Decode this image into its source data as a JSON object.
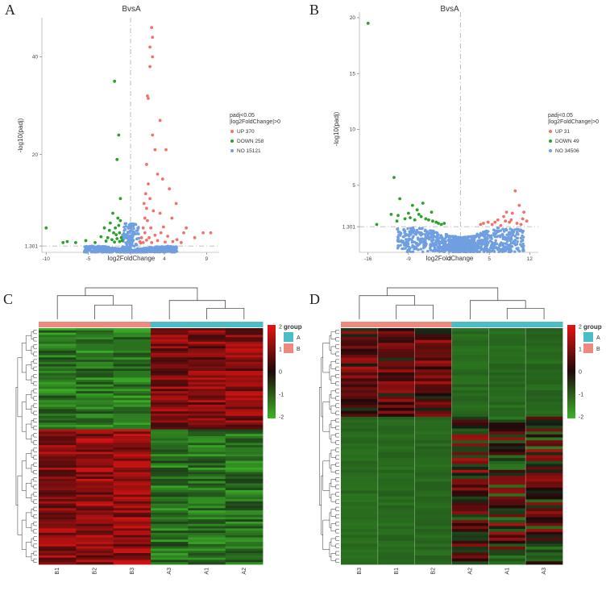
{
  "panels": {
    "A": "A",
    "B": "B",
    "C": "C",
    "D": "D"
  },
  "chart_data": [
    {
      "id": "A",
      "type": "scatter",
      "title": "BvsA",
      "xlabel": "log2FoldChange",
      "ylabel": "-log10(padj)",
      "xlim": [
        -10.5,
        10.5
      ],
      "ylim": [
        0,
        48
      ],
      "xticks": [
        -10,
        -5,
        0,
        4,
        9
      ],
      "yticks": [
        1.301,
        20,
        40
      ],
      "ytick_labels": [
        "1.301",
        "20",
        "40"
      ],
      "threshold": 1.301,
      "legend": {
        "title_line1": "padj<0.05",
        "title_line2": "|log2FoldChange|>0",
        "entries": [
          {
            "label": "UP 370",
            "color": "#f0736b"
          },
          {
            "label": "DOWN 258",
            "color": "#2ca02c"
          },
          {
            "label": "NO 15121",
            "color": "#6f9fe0"
          }
        ]
      },
      "up_points": [
        [
          2.5,
          46
        ],
        [
          2.6,
          44
        ],
        [
          2.3,
          42
        ],
        [
          2.6,
          40
        ],
        [
          2.3,
          38
        ],
        [
          2.0,
          32
        ],
        [
          2.1,
          31.5
        ],
        [
          3.5,
          27
        ],
        [
          2.6,
          24
        ],
        [
          2.9,
          21
        ],
        [
          4.2,
          21
        ],
        [
          1.9,
          18
        ],
        [
          3.2,
          16
        ],
        [
          3.8,
          15
        ],
        [
          4.6,
          13
        ],
        [
          1.8,
          12
        ],
        [
          2.3,
          11
        ],
        [
          5.4,
          10
        ],
        [
          1.9,
          9
        ],
        [
          3.5,
          8
        ],
        [
          4.9,
          7
        ],
        [
          2.0,
          6.5
        ],
        [
          6.6,
          5
        ],
        [
          6.3,
          4
        ],
        [
          7.6,
          3
        ],
        [
          8.6,
          4
        ],
        [
          9.5,
          4
        ],
        [
          1.5,
          5
        ],
        [
          1.7,
          4
        ],
        [
          2.2,
          3
        ],
        [
          1.9,
          2.5
        ],
        [
          2.5,
          2
        ],
        [
          3.2,
          2.4
        ],
        [
          4.1,
          2.1
        ],
        [
          5.0,
          2.2
        ],
        [
          1.3,
          3
        ],
        [
          1.5,
          2
        ],
        [
          2.9,
          3.5
        ],
        [
          3.6,
          4
        ],
        [
          1.1,
          2.2
        ],
        [
          1.7,
          7
        ],
        [
          2.4,
          5
        ],
        [
          1.2,
          1.9
        ],
        [
          4.4,
          3.3
        ],
        [
          5.5,
          2.6
        ],
        [
          6.0,
          2.0
        ],
        [
          3.9,
          5.2
        ],
        [
          2.7,
          8.5
        ],
        [
          1.6,
          10
        ],
        [
          2.1,
          14
        ]
      ],
      "down_points": [
        [
          -1.9,
          35
        ],
        [
          -1.4,
          24
        ],
        [
          -1.6,
          19
        ],
        [
          -1.2,
          11
        ],
        [
          -10.0,
          5
        ],
        [
          -2.1,
          8
        ],
        [
          -3.1,
          5
        ],
        [
          -2.4,
          6
        ],
        [
          -1.5,
          7
        ],
        [
          -1.8,
          5
        ],
        [
          -1.3,
          4
        ],
        [
          -2.7,
          3
        ],
        [
          -4.2,
          2
        ],
        [
          -5.3,
          2.4
        ],
        [
          -6.5,
          2.0
        ],
        [
          -7.5,
          2.2
        ],
        [
          -8.0,
          2.0
        ],
        [
          -1.1,
          3
        ],
        [
          -1.6,
          2.8
        ],
        [
          -2.0,
          4
        ],
        [
          -1.4,
          5.5
        ],
        [
          -1.2,
          6.5
        ],
        [
          -2.5,
          4.5
        ],
        [
          -1.7,
          3.6
        ],
        [
          -3.5,
          3.2
        ],
        [
          -2.9,
          2.3
        ],
        [
          -1.9,
          2.1
        ],
        [
          -1.3,
          2.2
        ],
        [
          -1.0,
          2.4
        ],
        [
          -2.2,
          2.6
        ]
      ]
    },
    {
      "id": "B",
      "type": "scatter",
      "title": "BvsA",
      "xlabel": "log2FoldChange",
      "ylabel": "-log10(padj)",
      "xlim": [
        -17.5,
        13.5
      ],
      "ylim": [
        -1,
        20.5
      ],
      "xticks": [
        -16,
        -9,
        -2,
        5,
        12
      ],
      "yticks": [
        1.301,
        5,
        10,
        15,
        20
      ],
      "ytick_labels": [
        "1.301",
        "5",
        "10",
        "15",
        "20"
      ],
      "threshold": 1.301,
      "legend": {
        "title_line1": "padj<0.05",
        "title_line2": "|log2FoldChange|>0",
        "entries": [
          {
            "label": "UP 31",
            "color": "#f0736b"
          },
          {
            "label": "DOWN 49",
            "color": "#2ca02c"
          },
          {
            "label": "NO 34506",
            "color": "#6f9fe0"
          }
        ]
      },
      "up_points": [
        [
          9.5,
          4.5
        ],
        [
          10.2,
          3.2
        ],
        [
          8.0,
          2.6
        ],
        [
          7.5,
          2.2
        ],
        [
          9.0,
          2.5
        ],
        [
          10.8,
          2.0
        ],
        [
          11.0,
          2.6
        ],
        [
          8.5,
          1.7
        ],
        [
          4.0,
          1.6
        ],
        [
          3.5,
          1.5
        ],
        [
          6.0,
          1.7
        ],
        [
          7.0,
          1.4
        ],
        [
          9.8,
          1.6
        ],
        [
          10.5,
          1.5
        ],
        [
          11.5,
          1.8
        ],
        [
          8.8,
          1.9
        ],
        [
          5.5,
          1.5
        ],
        [
          6.5,
          1.9
        ],
        [
          4.8,
          1.7
        ],
        [
          7.8,
          1.8
        ]
      ],
      "down_points": [
        [
          -16.0,
          19.5
        ],
        [
          -11.5,
          5.7
        ],
        [
          -10.5,
          3.8
        ],
        [
          -6.5,
          3.4
        ],
        [
          -8.3,
          3.2
        ],
        [
          -7.5,
          2.8
        ],
        [
          -9.0,
          2.5
        ],
        [
          -12.0,
          2.4
        ],
        [
          -10.8,
          2.3
        ],
        [
          -14.5,
          1.5
        ],
        [
          -7.2,
          2.4
        ],
        [
          -6.0,
          2.0
        ],
        [
          -5.5,
          1.9
        ],
        [
          -8.7,
          2.1
        ],
        [
          -4.8,
          1.8
        ],
        [
          -3.8,
          1.6
        ],
        [
          -9.6,
          2.0
        ],
        [
          -5.0,
          2.6
        ],
        [
          -6.8,
          2.2
        ],
        [
          -4.2,
          1.7
        ],
        [
          -7.9,
          1.9
        ],
        [
          -3.3,
          1.5
        ],
        [
          -11.0,
          1.8
        ],
        [
          -2.8,
          1.6
        ]
      ]
    },
    {
      "id": "C",
      "type": "heatmap",
      "columns": [
        "B1",
        "B2",
        "B3",
        "A3",
        "A1",
        "A2"
      ],
      "column_groups": [
        "B",
        "B",
        "B",
        "A",
        "A",
        "A"
      ],
      "colorbar_ticks": [
        "2",
        "1",
        "0",
        "-1",
        "-2"
      ],
      "colorbar_range": [
        -2,
        2
      ],
      "legend_title": "group",
      "groups": [
        {
          "label": "A",
          "color": "#4cbcc6"
        },
        {
          "label": "B",
          "color": "#ec8a80"
        }
      ],
      "rows": 105,
      "split_row": 45
    },
    {
      "id": "D",
      "type": "heatmap",
      "columns": [
        "B3",
        "B1",
        "B2",
        "A2",
        "A1",
        "A3"
      ],
      "column_groups": [
        "B",
        "B",
        "B",
        "A",
        "A",
        "A"
      ],
      "colorbar_ticks": [
        "2",
        "1",
        "0",
        "-1",
        "-2"
      ],
      "colorbar_range": [
        -2,
        2
      ],
      "legend_title": "group",
      "groups": [
        {
          "label": "A",
          "color": "#4cbcc6"
        },
        {
          "label": "B",
          "color": "#ec8a80"
        }
      ],
      "rows": 80,
      "split_row": 30
    }
  ]
}
